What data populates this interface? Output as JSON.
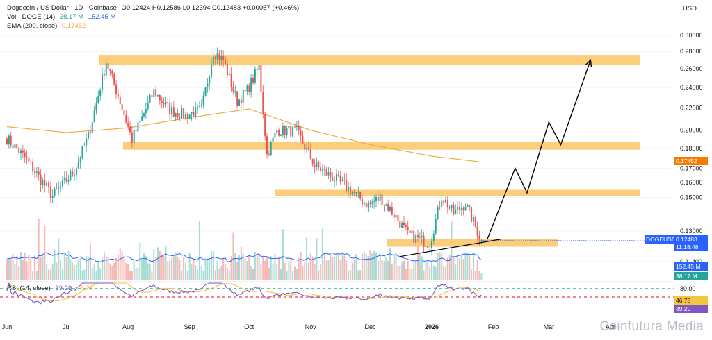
{
  "header": {
    "symbol": "Dogecoin / US Dollar · 1D · Coinbase",
    "ohlc": "O0.12424 H0.12586 L0.12394 C0.12483 +0.00057 (+0.46%)",
    "vol_label": "Vol · DOGE (14)",
    "vol_val1": "38.17 M",
    "vol_val2": "152.45 M",
    "ema_label": "EMA (200, close)",
    "ema_val": "0.17452",
    "currency": "USD"
  },
  "rsi_legend": {
    "label": "RSI (14, close)",
    "v1": "39.29",
    "v2": "46.78"
  },
  "price_labels": {
    "ema": "0.17452",
    "symbol": "DOGEUSD",
    "last": "0.12483",
    "countdown": "11:18:48",
    "vol_ma": "152.45 M",
    "vol": "38.17 M",
    "rsi_ma": "46.78",
    "rsi": "39.29"
  },
  "colors": {
    "up": "#26a69a",
    "down": "#ef5350",
    "ema": "#f0a63a",
    "zone": "#fbc665",
    "vol_ma": "#2962ff",
    "rsi": "#7e57c2",
    "rsi_ma": "#f5c542",
    "projection": "#000000",
    "ema_label_bg": "#f57c00",
    "price_label_bg": "#2962ff",
    "vol_label_bg": "#26a69a"
  },
  "watermark": "Coinfutura Media",
  "chart_data": {
    "type": "candlestick",
    "log_scale": true,
    "y_axis_ticks": [
      0.3,
      0.28,
      0.26,
      0.24,
      0.22,
      0.2,
      0.185,
      0.17,
      0.16,
      0.15,
      0.13,
      0.114
    ],
    "y_axis_labels": [
      "0.30000",
      "0.28000",
      "0.26000",
      "0.24000",
      "0.22000",
      "0.20000",
      "0.18500",
      "0.17000",
      "0.16000",
      "0.15000",
      "0.13000",
      "0.11400"
    ],
    "x_axis_labels": [
      "Jun",
      "Jul",
      "Aug",
      "Sep",
      "Oct",
      "Nov",
      "Dec",
      "2026",
      "Feb",
      "Mar",
      "Apr"
    ],
    "rsi_levels": [
      "80.00"
    ],
    "rsi_bands": [
      70,
      30
    ],
    "price_path_keypoints": [
      [
        "2025-06-01",
        0.193
      ],
      [
        "2025-06-10",
        0.178
      ],
      [
        "2025-06-20",
        0.158
      ],
      [
        "2025-06-24",
        0.151
      ],
      [
        "2025-07-05",
        0.168
      ],
      [
        "2025-07-12",
        0.195
      ],
      [
        "2025-07-21",
        0.268
      ],
      [
        "2025-07-28",
        0.226
      ],
      [
        "2025-08-03",
        0.192
      ],
      [
        "2025-08-14",
        0.236
      ],
      [
        "2025-08-22",
        0.218
      ],
      [
        "2025-08-30",
        0.213
      ],
      [
        "2025-09-07",
        0.218
      ],
      [
        "2025-09-13",
        0.28
      ],
      [
        "2025-09-18",
        0.27
      ],
      [
        "2025-09-25",
        0.226
      ],
      [
        "2025-09-30",
        0.237
      ],
      [
        "2025-10-06",
        0.262
      ],
      [
        "2025-10-10",
        0.18
      ],
      [
        "2025-10-15",
        0.2
      ],
      [
        "2025-10-25",
        0.199
      ],
      [
        "2025-11-03",
        0.172
      ],
      [
        "2025-11-18",
        0.158
      ],
      [
        "2025-11-30",
        0.145
      ],
      [
        "2025-12-06",
        0.15
      ],
      [
        "2025-12-14",
        0.138
      ],
      [
        "2025-12-20",
        0.128
      ],
      [
        "2025-12-31",
        0.123
      ],
      [
        "2026-01-06",
        0.151
      ],
      [
        "2026-01-12",
        0.14
      ],
      [
        "2026-01-18",
        0.146
      ],
      [
        "2026-01-26",
        0.1248
      ]
    ],
    "ema200_keypoints": [
      [
        "2025-06-01",
        0.203
      ],
      [
        "2025-07-01",
        0.198
      ],
      [
        "2025-08-01",
        0.202
      ],
      [
        "2025-09-01",
        0.211
      ],
      [
        "2025-10-01",
        0.219
      ],
      [
        "2025-11-01",
        0.2
      ],
      [
        "2025-12-01",
        0.188
      ],
      [
        "2026-01-01",
        0.179
      ],
      [
        "2026-01-26",
        0.1745
      ]
    ],
    "support_resistance_zones": [
      [
        0.264,
        0.276
      ],
      [
        0.184,
        0.19
      ],
      [
        0.151,
        0.155
      ],
      [
        0.1215,
        0.1255
      ]
    ],
    "trendline": [
      [
        "2025-12-16",
        0.1165
      ],
      [
        "2026-02-05",
        0.1255
      ]
    ],
    "projection_path": [
      [
        "2026-01-29",
        0.1255
      ],
      [
        "2026-02-12",
        0.17
      ],
      [
        "2026-02-18",
        0.153
      ],
      [
        "2026-03-01",
        0.207
      ],
      [
        "2026-03-07",
        0.188
      ],
      [
        "2026-03-22",
        0.27
      ]
    ],
    "volume": {
      "ma_last": 152.45,
      "last": 38.17,
      "unit": "M"
    },
    "rsi": {
      "last": 39.29,
      "ma_last": 46.78
    }
  }
}
